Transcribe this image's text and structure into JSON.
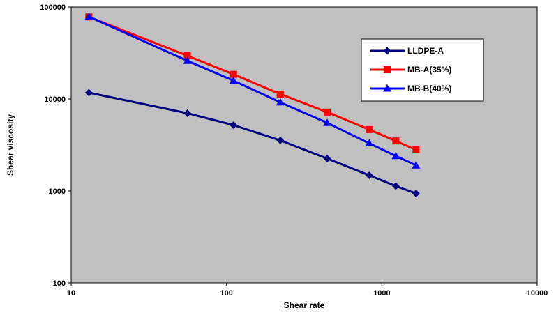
{
  "chart_data": {
    "type": "line",
    "xscale": "log",
    "yscale": "log",
    "xlim": [
      10,
      10000
    ],
    "ylim": [
      100,
      100000
    ],
    "x_ticks": [
      "10",
      "100",
      "1000",
      "10000"
    ],
    "y_ticks": [
      "100",
      "1000",
      "10000",
      "100000"
    ],
    "xlabel": "Shear rate",
    "ylabel": "Shear viscosity",
    "grid": false,
    "plot_background": "#c0c0c0",
    "legend_position": "upper-right",
    "series": [
      {
        "name": "LLDPE-A",
        "color": "#000080",
        "marker": "diamond",
        "x": [
          13,
          56,
          111,
          222,
          445,
          830,
          1230,
          1660
        ],
        "y": [
          11700,
          7000,
          5200,
          3550,
          2250,
          1480,
          1130,
          940
        ]
      },
      {
        "name": "MB-A(35%)",
        "color": "#ff0000",
        "marker": "square",
        "x": [
          13,
          56,
          111,
          222,
          445,
          830,
          1230,
          1660
        ],
        "y": [
          78000,
          29500,
          18500,
          11300,
          7200,
          4650,
          3500,
          2800
        ]
      },
      {
        "name": "MB-B(40%)",
        "color": "#0000ff",
        "marker": "triangle",
        "x": [
          13,
          56,
          111,
          222,
          445,
          830,
          1230,
          1660
        ],
        "y": [
          78500,
          26000,
          15800,
          9200,
          5500,
          3300,
          2400,
          1900
        ]
      }
    ]
  }
}
